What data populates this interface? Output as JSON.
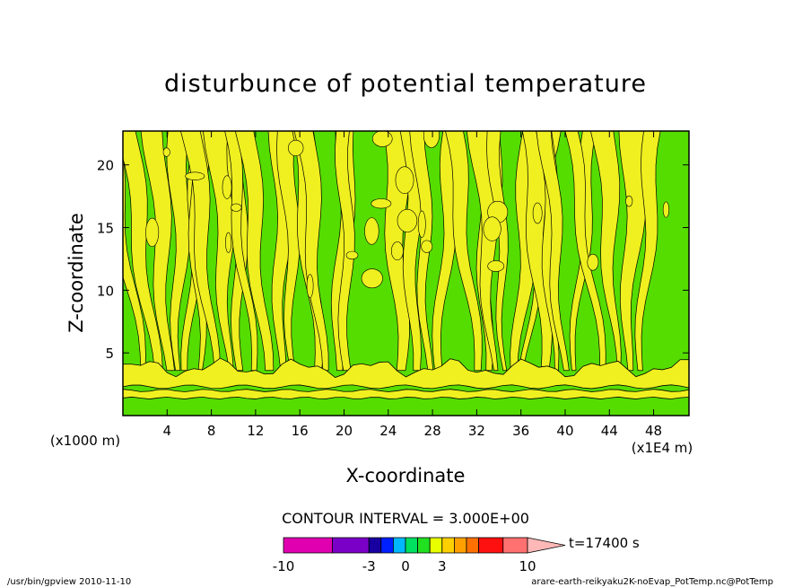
{
  "chart_data": {
    "type": "heatmap",
    "title": "disturbunce of potential temperature",
    "xlabel": "X-coordinate",
    "ylabel": "Z-coordinate",
    "x_scale_label": "(x1E4 m)",
    "y_scale_label": "(x1000 m)",
    "xlim": [
      0,
      51.2
    ],
    "ylim": [
      0,
      22.7
    ],
    "x_ticks": [
      "4",
      "8",
      "12",
      "16",
      "20",
      "24",
      "28",
      "32",
      "36",
      "40",
      "44",
      "48"
    ],
    "x_tick_values": [
      4,
      8,
      12,
      16,
      20,
      24,
      28,
      32,
      36,
      40,
      44,
      48
    ],
    "y_ticks": [
      "5",
      "10",
      "15",
      "20"
    ],
    "y_tick_values": [
      5,
      10,
      15,
      20
    ],
    "contour_interval": "CONTOUR INTERVAL = 3.000E+00",
    "time_label": "t=17400 s",
    "colorbar": {
      "colors": [
        "#e000b0",
        "#7a00c8",
        "#1800a0",
        "#0020ff",
        "#00b8ff",
        "#00e060",
        "#20e020",
        "#e8ff00",
        "#ffd000",
        "#ffa000",
        "#ff7000",
        "#ff1010",
        "#ff7070",
        "#ffb8b8"
      ],
      "bounds": [
        -10,
        -6,
        -3,
        -2,
        -1,
        0,
        1,
        2,
        3,
        4,
        5,
        6,
        8,
        10
      ],
      "labels": [
        "-10",
        "-3",
        "0",
        "3",
        "10"
      ],
      "label_values": [
        -10,
        -3,
        0,
        3,
        10
      ]
    },
    "plume_centers_x": [
      4.5,
      9.5,
      14.2,
      19.3,
      27.5,
      34.5,
      39.8,
      45.6
    ],
    "fill_colors": {
      "low": "#55dd00",
      "high": "#f0f020"
    }
  },
  "footer": {
    "left": "/usr/bin/gpview  2010-11-10",
    "right": "arare-earth-reikyaku2K-noEvap_PotTemp.nc@PotTemp"
  }
}
